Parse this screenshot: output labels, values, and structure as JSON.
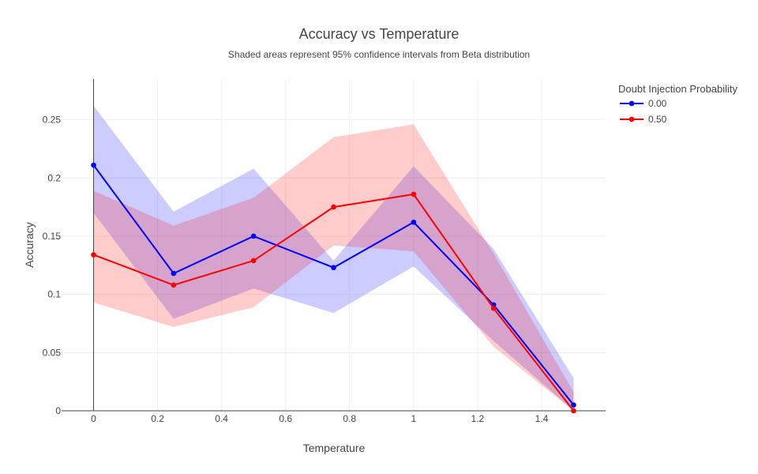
{
  "chart_data": {
    "type": "line",
    "title": "Accuracy vs Temperature",
    "subtitle": "Shaded areas represent 95% confidence intervals from Beta distribution",
    "xlabel": "Temperature",
    "ylabel": "Accuracy",
    "xlim": [
      -0.1,
      1.6
    ],
    "ylim": [
      0,
      0.285
    ],
    "x_ticks": [
      0,
      0.2,
      0.4,
      0.6,
      0.8,
      1,
      1.2,
      1.4
    ],
    "x_tick_labels": [
      "0",
      "0.2",
      "0.4",
      "0.6",
      "0.8",
      "1",
      "1.2",
      "1.4"
    ],
    "y_ticks": [
      0,
      0.05,
      0.1,
      0.15,
      0.2,
      0.25
    ],
    "y_tick_labels": [
      "0",
      "0.05",
      "0.1",
      "0.15",
      "0.2",
      "0.25"
    ],
    "grid": true,
    "legend_position": "top-right",
    "legend_title": "Doubt Injection Probability",
    "x": [
      0,
      0.25,
      0.5,
      0.75,
      1,
      1.25,
      1.5
    ],
    "series": [
      {
        "name": "0.00",
        "color": "#0000ff",
        "band_color": "#0000ff",
        "values": [
          0.211,
          0.118,
          0.15,
          0.123,
          0.162,
          0.091,
          0.005
        ],
        "lower": [
          0.17,
          0.079,
          0.105,
          0.084,
          0.124,
          0.06,
          0.0
        ],
        "upper": [
          0.262,
          0.171,
          0.208,
          0.129,
          0.21,
          0.139,
          0.028
        ]
      },
      {
        "name": "0.50",
        "color": "#ff0000",
        "band_color": "#ff0000",
        "values": [
          0.134,
          0.108,
          0.129,
          0.175,
          0.186,
          0.088,
          0.0
        ],
        "lower": [
          0.093,
          0.072,
          0.089,
          0.142,
          0.137,
          0.055,
          0.0
        ],
        "upper": [
          0.189,
          0.159,
          0.183,
          0.235,
          0.246,
          0.135,
          0.016
        ]
      }
    ]
  }
}
